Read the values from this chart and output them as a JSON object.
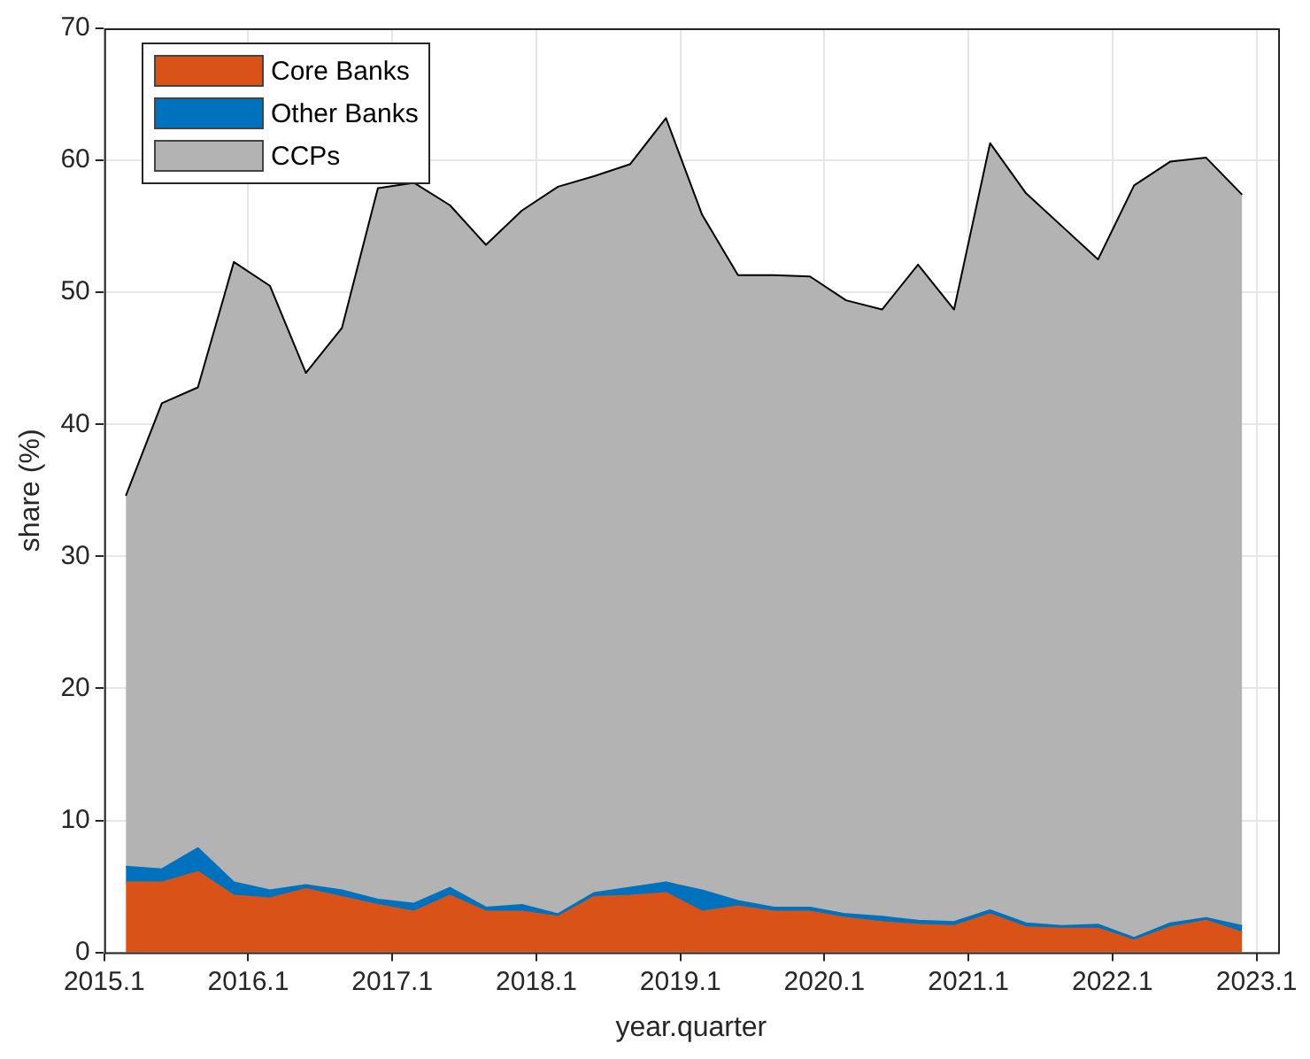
{
  "chart_data": {
    "type": "area",
    "xlabel": "year.quarter",
    "ylabel": "share (%)",
    "stacked": true,
    "grid": true,
    "legend": "top left",
    "x": [
      2015.25,
      2015.5,
      2015.75,
      2016.0,
      2016.25,
      2016.5,
      2016.75,
      2017.0,
      2017.25,
      2017.5,
      2017.75,
      2018.0,
      2018.25,
      2018.5,
      2018.75,
      2019.0,
      2019.25,
      2019.5,
      2019.75,
      2020.0,
      2020.25,
      2020.5,
      2020.75,
      2021.0,
      2021.25,
      2021.5,
      2021.75,
      2022.0,
      2022.25,
      2022.5,
      2022.75,
      2023.0
    ],
    "xlim": [
      2015.1,
      2023.25
    ],
    "xticks": [
      2015.1,
      2016.1,
      2017.1,
      2018.1,
      2019.1,
      2020.1,
      2021.1,
      2022.1,
      2023.1
    ],
    "ylim": [
      0,
      70
    ],
    "yticks": [
      0,
      10,
      20,
      30,
      40,
      50,
      60,
      70
    ],
    "series": [
      {
        "name": "Core Banks",
        "color": "#d95319",
        "values": [
          5.3,
          5.3,
          6.1,
          4.3,
          4.1,
          4.8,
          4.2,
          3.6,
          3.1,
          4.3,
          3.1,
          3.1,
          2.7,
          4.2,
          4.3,
          4.5,
          3.1,
          3.5,
          3.1,
          3.1,
          2.6,
          2.3,
          2.1,
          2.0,
          2.9,
          1.9,
          1.8,
          1.8,
          0.9,
          1.9,
          2.4,
          1.5
        ]
      },
      {
        "name": "Other Banks",
        "color": "#0072bd",
        "values": [
          1.2,
          1.0,
          1.8,
          1.0,
          0.6,
          0.3,
          0.5,
          0.4,
          0.6,
          0.6,
          0.3,
          0.5,
          0.2,
          0.3,
          0.6,
          0.8,
          1.6,
          0.4,
          0.3,
          0.3,
          0.3,
          0.4,
          0.3,
          0.3,
          0.3,
          0.3,
          0.2,
          0.3,
          0.2,
          0.3,
          0.2,
          0.5
        ]
      },
      {
        "name": "CCPs",
        "color": "#b3b3b3",
        "values": [
          28.1,
          35.3,
          34.9,
          47.0,
          45.8,
          38.8,
          42.6,
          53.9,
          54.6,
          51.7,
          50.2,
          52.6,
          55.1,
          54.3,
          54.8,
          57.9,
          51.2,
          47.4,
          47.9,
          47.8,
          46.5,
          46.0,
          49.7,
          46.4,
          58.1,
          55.3,
          53.0,
          50.4,
          57.0,
          57.7,
          57.6,
          55.4
        ]
      }
    ]
  }
}
